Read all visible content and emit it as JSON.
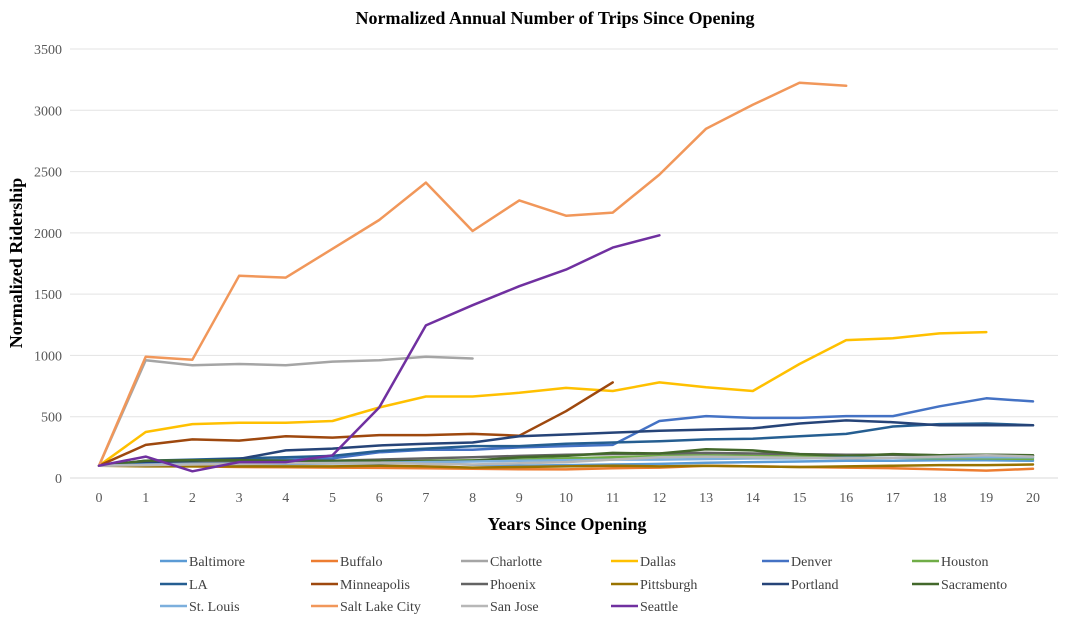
{
  "chart_data": {
    "type": "line",
    "title": "Normalized Annual Number of Trips Since Opening",
    "xlabel": "Years Since Opening",
    "ylabel": "Normalized Ridership",
    "xlim": [
      0,
      20
    ],
    "ylim": [
      0,
      3500
    ],
    "x_ticks": [
      0,
      1,
      2,
      3,
      4,
      5,
      6,
      7,
      8,
      9,
      10,
      11,
      12,
      13,
      14,
      15,
      16,
      17,
      18,
      19,
      20
    ],
    "y_ticks": [
      0,
      500,
      1000,
      1500,
      2000,
      2500,
      3000,
      3500
    ],
    "grid": "horizontal",
    "legend_position": "bottom",
    "series": [
      {
        "name": "Baltimore",
        "color": "#5B9BD5",
        "x": [
          0,
          1,
          2,
          3,
          4,
          5,
          6,
          7,
          8,
          9,
          10,
          11,
          12,
          13,
          14,
          15,
          16,
          17,
          18,
          19,
          20
        ],
        "y": [
          100,
          105,
          110,
          112,
          115,
          118,
          120,
          122,
          108,
          100,
          105,
          110,
          115,
          125,
          130,
          135,
          140,
          140,
          145,
          145,
          140
        ]
      },
      {
        "name": "Buffalo",
        "color": "#ED7D31",
        "x": [
          0,
          1,
          2,
          3,
          4,
          5,
          6,
          7,
          8,
          9,
          10,
          11,
          12,
          13,
          14,
          15,
          16,
          17,
          18,
          19,
          20
        ],
        "y": [
          100,
          100,
          95,
          90,
          88,
          85,
          82,
          80,
          75,
          72,
          70,
          80,
          85,
          100,
          95,
          90,
          85,
          80,
          70,
          60,
          75
        ]
      },
      {
        "name": "Charlotte",
        "color": "#A5A5A5",
        "x": [
          0,
          1,
          2,
          3,
          4,
          5,
          6,
          7,
          8
        ],
        "y": [
          100,
          960,
          920,
          930,
          920,
          950,
          960,
          990,
          975
        ]
      },
      {
        "name": "Dallas",
        "color": "#FFC000",
        "x": [
          0,
          1,
          2,
          3,
          4,
          5,
          6,
          7,
          8,
          9,
          10,
          11,
          12,
          13,
          14,
          15,
          16,
          17,
          18,
          19
        ],
        "y": [
          100,
          375,
          440,
          450,
          450,
          465,
          575,
          665,
          665,
          695,
          735,
          710,
          780,
          740,
          710,
          930,
          1125,
          1140,
          1180,
          1190
        ]
      },
      {
        "name": "Denver",
        "color": "#4472C4",
        "x": [
          0,
          1,
          2,
          3,
          4,
          5,
          6,
          7,
          8,
          9,
          10,
          11,
          12,
          13,
          14,
          15,
          16,
          17,
          18,
          19,
          20
        ],
        "y": [
          100,
          125,
          130,
          140,
          150,
          160,
          210,
          230,
          230,
          250,
          260,
          270,
          465,
          505,
          490,
          490,
          505,
          505,
          585,
          650,
          625
        ]
      },
      {
        "name": "Houston",
        "color": "#70AD47",
        "x": [
          0,
          1,
          2,
          3,
          4,
          5,
          6,
          7,
          8,
          9,
          10,
          11,
          12,
          13,
          14,
          15,
          16,
          17,
          18,
          19,
          20
        ],
        "y": [
          100,
          110,
          115,
          120,
          125,
          130,
          135,
          140,
          145,
          150,
          160,
          170,
          180,
          185,
          180,
          175,
          170,
          165,
          160,
          160,
          155
        ]
      },
      {
        "name": "LA",
        "color": "#255E91",
        "x": [
          0,
          1,
          2,
          3,
          4,
          5,
          6,
          7,
          8,
          9,
          10,
          11,
          12,
          13,
          14,
          15,
          16,
          17,
          18,
          19,
          20
        ],
        "y": [
          100,
          140,
          150,
          160,
          170,
          180,
          220,
          240,
          260,
          260,
          280,
          290,
          300,
          315,
          320,
          340,
          360,
          420,
          440,
          445,
          430
        ]
      },
      {
        "name": "Minneapolis",
        "color": "#9E480E",
        "x": [
          0,
          1,
          2,
          3,
          4,
          5,
          6,
          7,
          8,
          9,
          10,
          11
        ],
        "y": [
          100,
          270,
          315,
          305,
          340,
          330,
          350,
          350,
          360,
          345,
          545,
          780
        ]
      },
      {
        "name": "Phoenix",
        "color": "#636363",
        "x": [
          0,
          1,
          2,
          3,
          4,
          5,
          6,
          7,
          8,
          9,
          10,
          11,
          12,
          13,
          14,
          15,
          16,
          17,
          18,
          19,
          20
        ],
        "y": [
          100,
          120,
          125,
          130,
          135,
          140,
          150,
          160,
          170,
          180,
          190,
          195,
          200,
          205,
          200,
          195,
          190,
          190,
          185,
          190,
          185
        ]
      },
      {
        "name": "Pittsburgh",
        "color": "#997300",
        "x": [
          0,
          1,
          2,
          3,
          4,
          5,
          6,
          7,
          8,
          9,
          10,
          11,
          12,
          13,
          14,
          15,
          16,
          17,
          18,
          19,
          20
        ],
        "y": [
          100,
          95,
          95,
          95,
          95,
          95,
          100,
          95,
          85,
          90,
          95,
          100,
          95,
          100,
          95,
          90,
          95,
          100,
          105,
          105,
          110
        ]
      },
      {
        "name": "Portland",
        "color": "#264478",
        "x": [
          0,
          1,
          2,
          3,
          4,
          5,
          6,
          7,
          8,
          9,
          10,
          11,
          12,
          13,
          14,
          15,
          16,
          17,
          18,
          19,
          20
        ],
        "y": [
          100,
          130,
          140,
          155,
          225,
          240,
          265,
          280,
          290,
          340,
          355,
          370,
          385,
          395,
          405,
          445,
          470,
          455,
          430,
          430,
          430
        ]
      },
      {
        "name": "Sacramento",
        "color": "#43682B",
        "x": [
          0,
          1,
          2,
          3,
          4,
          5,
          6,
          7,
          8,
          9,
          10,
          11,
          12,
          13,
          14,
          15,
          16,
          17,
          18,
          19,
          20
        ],
        "y": [
          100,
          140,
          145,
          145,
          140,
          140,
          140,
          135,
          140,
          170,
          180,
          205,
          200,
          235,
          225,
          195,
          180,
          195,
          185,
          190,
          185
        ]
      },
      {
        "name": "St. Louis",
        "color": "#7CAFDD",
        "x": [
          0,
          1,
          2,
          3,
          4,
          5,
          6,
          7,
          8,
          9,
          10,
          11,
          12,
          13,
          14,
          15,
          16,
          17,
          18,
          19,
          20
        ],
        "y": [
          100,
          110,
          115,
          118,
          120,
          122,
          125,
          130,
          135,
          140,
          145,
          150,
          150,
          155,
          160,
          160,
          165,
          165,
          170,
          170,
          170
        ]
      },
      {
        "name": "Salt Lake City",
        "color": "#F1975A",
        "x": [
          0,
          1,
          2,
          3,
          4,
          5,
          6,
          7,
          8,
          9,
          10,
          11,
          12,
          13,
          14,
          15,
          16
        ],
        "y": [
          100,
          990,
          965,
          1650,
          1635,
          1870,
          2105,
          2410,
          2015,
          2265,
          2140,
          2165,
          2475,
          2850,
          3045,
          3225,
          3200
        ]
      },
      {
        "name": "San Jose",
        "color": "#B7B7B7",
        "x": [
          0,
          1,
          2,
          3,
          4,
          5,
          6,
          7,
          8,
          9,
          10,
          11,
          12,
          13,
          14,
          15,
          16,
          17,
          18,
          19,
          20
        ],
        "y": [
          100,
          105,
          110,
          115,
          120,
          120,
          125,
          115,
          110,
          120,
          130,
          150,
          170,
          175,
          170,
          165,
          160,
          165,
          175,
          185,
          175
        ]
      },
      {
        "name": "Seattle",
        "color": "#7030A0",
        "x": [
          0,
          1,
          2,
          3,
          4,
          5,
          6,
          7,
          8,
          9,
          10,
          11,
          12
        ],
        "y": [
          100,
          175,
          55,
          130,
          130,
          185,
          575,
          1245,
          1410,
          1565,
          1700,
          1880,
          1980
        ]
      }
    ]
  }
}
